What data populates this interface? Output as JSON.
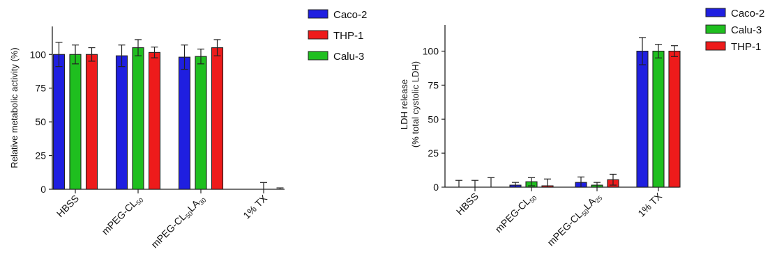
{
  "chart_data": [
    {
      "type": "bar",
      "title": "",
      "xlabel": "",
      "ylabel": "Relative metabolic activity (%)",
      "ylim": [
        0,
        120
      ],
      "yticks": [
        0,
        25,
        50,
        75,
        100
      ],
      "grid": false,
      "legend_position": "top-right",
      "categories": [
        {
          "main": "HBSS"
        },
        {
          "main": "mPEG-CL",
          "sub": "50"
        },
        {
          "main": "mPEG-CL",
          "sub": "50",
          "main2": "LA",
          "sub2": "30"
        },
        {
          "main": "1% TX"
        }
      ],
      "series": [
        {
          "name": "Caco-2",
          "color": "#1f1fe0",
          "values": [
            100,
            99,
            98,
            0
          ],
          "errors": [
            9,
            8,
            9,
            0
          ]
        },
        {
          "name": "Calu-3",
          "color": "#1fbf1f",
          "values": [
            100,
            105,
            98.5,
            0
          ],
          "errors": [
            7,
            6,
            5.5,
            5
          ]
        },
        {
          "name": "THP-1",
          "color": "#ee1b1b",
          "values": [
            100,
            101.5,
            105,
            0
          ],
          "errors": [
            5,
            4,
            6,
            1
          ]
        }
      ],
      "legend_order": [
        "Caco-2",
        "THP-1",
        "Calu-3"
      ]
    },
    {
      "type": "bar",
      "title": "",
      "xlabel": "",
      "ylabel": "LDH release",
      "ylabel2": "(% total cystolic LDH)",
      "ylim": [
        0,
        120
      ],
      "yticks": [
        0,
        25,
        50,
        75,
        100
      ],
      "grid": false,
      "legend_position": "top-right",
      "categories": [
        {
          "main": "HBSS"
        },
        {
          "main": "mPEG-CL",
          "sub": "50"
        },
        {
          "main": "mPEG-CL",
          "sub": "50",
          "main2": "LA",
          "sub2": "25"
        },
        {
          "main": "1% TX"
        }
      ],
      "series": [
        {
          "name": "Caco-2",
          "color": "#1f1fe0",
          "values": [
            0,
            1.5,
            3.5,
            100
          ],
          "errors": [
            5,
            2,
            4,
            10
          ]
        },
        {
          "name": "Calu-3",
          "color": "#1fbf1f",
          "values": [
            0,
            4,
            1.5,
            100
          ],
          "errors": [
            5,
            3,
            2,
            5
          ]
        },
        {
          "name": "THP-1",
          "color": "#ee1b1b",
          "values": [
            0,
            1,
            5.5,
            100
          ],
          "errors": [
            7,
            5,
            4,
            4
          ]
        }
      ],
      "legend_order": [
        "Caco-2",
        "Calu-3",
        "THP-1"
      ]
    }
  ]
}
